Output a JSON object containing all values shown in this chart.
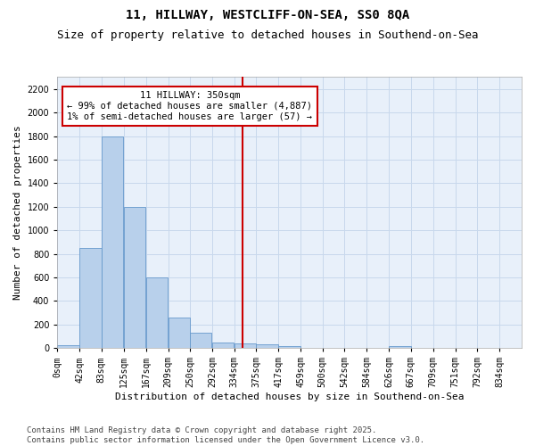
{
  "title": "11, HILLWAY, WESTCLIFF-ON-SEA, SS0 8QA",
  "subtitle": "Size of property relative to detached houses in Southend-on-Sea",
  "xlabel": "Distribution of detached houses by size in Southend-on-Sea",
  "ylabel": "Number of detached properties",
  "bin_labels": [
    "0sqm",
    "42sqm",
    "83sqm",
    "125sqm",
    "167sqm",
    "209sqm",
    "250sqm",
    "292sqm",
    "334sqm",
    "375sqm",
    "417sqm",
    "459sqm",
    "500sqm",
    "542sqm",
    "584sqm",
    "626sqm",
    "667sqm",
    "709sqm",
    "751sqm",
    "792sqm",
    "834sqm"
  ],
  "bin_left_edges": [
    0,
    42,
    83,
    125,
    167,
    209,
    250,
    292,
    334,
    375,
    417,
    459,
    500,
    542,
    584,
    626,
    667,
    709,
    751,
    792,
    834
  ],
  "bin_width": 41,
  "bar_values": [
    25,
    850,
    1800,
    1200,
    600,
    260,
    130,
    50,
    40,
    30,
    20,
    0,
    0,
    0,
    0,
    20,
    0,
    0,
    0,
    0,
    0
  ],
  "bar_color": "#b8d0eb",
  "bar_edge_color": "#6699cc",
  "vline_x": 350,
  "vline_color": "#cc0000",
  "annotation_line1": "11 HILLWAY: 350sqm",
  "annotation_line2": "← 99% of detached houses are smaller (4,887)",
  "annotation_line3": "1% of semi-detached houses are larger (57) →",
  "ylim": [
    0,
    2300
  ],
  "xlim": [
    0,
    876
  ],
  "grid_color": "#c8d8ec",
  "background_color": "#e8f0fa",
  "footer_line1": "Contains HM Land Registry data © Crown copyright and database right 2025.",
  "footer_line2": "Contains public sector information licensed under the Open Government Licence v3.0.",
  "title_fontsize": 10,
  "subtitle_fontsize": 9,
  "xlabel_fontsize": 8,
  "ylabel_fontsize": 8,
  "tick_fontsize": 7,
  "annotation_fontsize": 7.5,
  "footer_fontsize": 6.5
}
